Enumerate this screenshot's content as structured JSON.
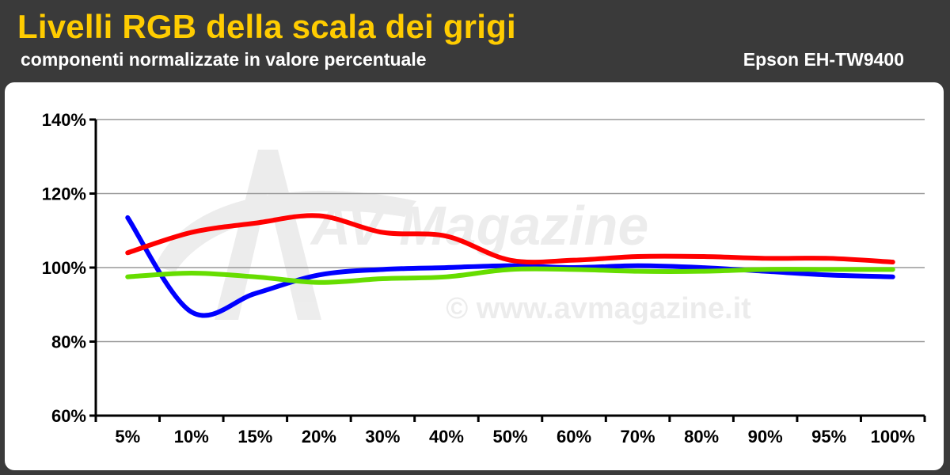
{
  "header": {
    "title": "Livelli RGB della scala dei grigi",
    "subtitle": "componenti normalizzate in valore percentuale",
    "model": "Epson EH-TW9400"
  },
  "watermark": {
    "logo_text": "AV Magazine",
    "url_text": "© www.avmagazine.it"
  },
  "colors": {
    "background": "#3a3a3a",
    "title": "#ffcc00",
    "red": "#ff0000",
    "green": "#66dd00",
    "blue": "#0000ff",
    "grid": "#999999"
  },
  "chart_data": {
    "type": "line",
    "title": "Livelli RGB della scala dei grigi",
    "subtitle": "componenti normalizzate in valore percentuale",
    "xlabel": "",
    "ylabel": "",
    "categories": [
      "5%",
      "10%",
      "15%",
      "20%",
      "30%",
      "40%",
      "50%",
      "60%",
      "70%",
      "80%",
      "90%",
      "95%",
      "100%"
    ],
    "y_ticks": [
      60,
      80,
      100,
      120,
      140
    ],
    "y_tick_labels": [
      "60%",
      "80%",
      "100%",
      "120%",
      "140%"
    ],
    "ylim": [
      60,
      140
    ],
    "grid": true,
    "legend": "none",
    "series": [
      {
        "color": "#0000ff",
        "values": [
          113.5,
          88,
          93,
          98,
          99.5,
          100,
          100.5,
          100,
          100.5,
          100,
          99,
          98,
          97.5
        ]
      },
      {
        "color": "#ff0000",
        "values": [
          104,
          109.5,
          112,
          114,
          109.5,
          108.5,
          102,
          102,
          103,
          103,
          102.5,
          102.5,
          101.5
        ]
      },
      {
        "color": "#66dd00",
        "values": [
          97.5,
          98.5,
          97.5,
          96,
          97,
          97.5,
          99.5,
          99.5,
          99,
          99,
          99.5,
          99.5,
          99.5
        ]
      }
    ]
  }
}
